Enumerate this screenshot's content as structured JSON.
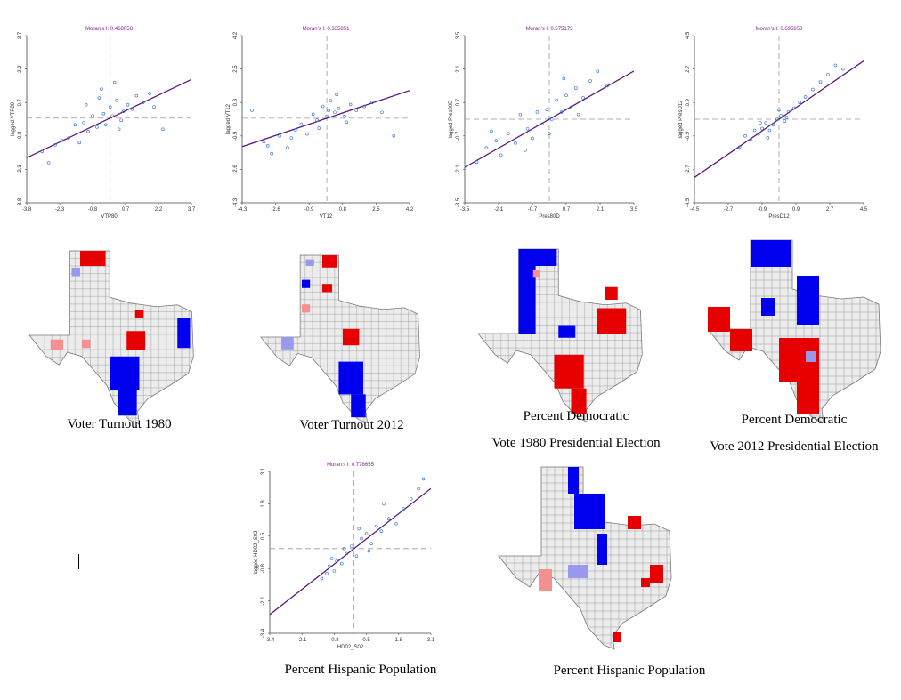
{
  "chart_data": [
    {
      "type": "scatter",
      "title": "Moran's I: 0.468058",
      "xlabel": "VTP80",
      "ylabel": "lagged VTP80",
      "fit_slope": 0.468058,
      "xlim": [
        -3.8,
        3.7
      ],
      "ylim": [
        -3.8,
        3.7
      ],
      "xticks": [
        -3.8,
        -2.3,
        -0.8,
        0.7,
        2.2,
        3.7
      ],
      "yticks": [
        -3.8,
        -2.3,
        -0.8,
        0.7,
        2.2,
        3.7
      ],
      "x": [
        -3.1,
        -2.8,
        -2.5,
        -2.2,
        -1.9,
        -1.6,
        -1.4,
        -1.2,
        -1.0,
        -0.8,
        -0.6,
        -0.5,
        -0.3,
        -0.2,
        0,
        0.1,
        0.3,
        0.4,
        0.6,
        0.8,
        1.0,
        1.2,
        1.5,
        1.8,
        2.0,
        2.4,
        -0.4,
        0.2,
        0.5,
        -1.1
      ],
      "values": [
        -1.5,
        -2.0,
        -1.2,
        -1.0,
        -0.9,
        -0.3,
        -1.1,
        -0.2,
        -0.6,
        0.1,
        -0.4,
        0.9,
        0.2,
        -0.3,
        0.5,
        0.1,
        0.8,
        -0.5,
        0.3,
        0.6,
        0.4,
        1.0,
        0.7,
        1.1,
        0.5,
        -0.5,
        1.3,
        1.6,
        -0.1,
        0.6
      ]
    },
    {
      "type": "scatter",
      "title": "Moran's I: 0.335851",
      "xlabel": "VT12",
      "ylabel": "lagged VT12",
      "fit_slope": 0.335851,
      "xlim": [
        -4.3,
        4.2
      ],
      "ylim": [
        -4.3,
        4.2
      ],
      "xticks": [
        -4.3,
        -2.6,
        -0.9,
        0.8,
        2.5,
        4.2
      ],
      "yticks": [
        -4.3,
        -2.6,
        -0.9,
        0.8,
        2.5,
        4.2
      ],
      "x": [
        -3.8,
        -3.2,
        -2.8,
        -2.4,
        -2.0,
        -1.6,
        -1.3,
        -1.0,
        -0.7,
        -0.4,
        -0.2,
        0,
        0.2,
        0.4,
        0.6,
        0.9,
        1.2,
        1.5,
        1.9,
        2.3,
        2.8,
        3.4,
        -3.0,
        -1.8,
        0.5,
        1.0,
        -0.5,
        0.1
      ],
      "values": [
        0.4,
        -1.2,
        -1.8,
        -0.9,
        -1.5,
        -0.6,
        -0.3,
        -0.8,
        0.2,
        -0.5,
        0.6,
        0.1,
        0.9,
        0.3,
        0.5,
        0.1,
        0.7,
        0.4,
        0.6,
        0.8,
        0.3,
        -0.9,
        -1.4,
        -1.0,
        1.2,
        -0.2,
        -0.1,
        0.4
      ]
    },
    {
      "type": "scatter",
      "title": "Moran's I: 0.575173",
      "xlabel": "Pres80D",
      "ylabel": "lagged Pres80D",
      "fit_slope": 0.575173,
      "xlim": [
        -3.5,
        3.5
      ],
      "ylim": [
        -3.5,
        3.5
      ],
      "xticks": [
        -3.5,
        -2.1,
        -0.7,
        0.7,
        2.1,
        3.5
      ],
      "yticks": [
        -3.5,
        -2.1,
        -0.7,
        0.7,
        2.1,
        3.5
      ],
      "x": [
        -3.0,
        -2.6,
        -2.2,
        -2.0,
        -1.7,
        -1.4,
        -1.2,
        -0.9,
        -0.7,
        -0.5,
        -0.3,
        -0.1,
        0.1,
        0.3,
        0.5,
        0.7,
        0.9,
        1.1,
        1.4,
        1.7,
        2.0,
        2.4,
        -1.0,
        0.0,
        0.6,
        1.2,
        -2.4
      ],
      "values": [
        -1.8,
        -1.2,
        -0.9,
        -1.5,
        -0.6,
        -1.0,
        0.2,
        -0.4,
        -0.8,
        0.3,
        -0.2,
        0.4,
        0.0,
        0.8,
        0.3,
        1.0,
        0.5,
        1.3,
        0.9,
        1.6,
        2.0,
        1.4,
        -1.3,
        -0.6,
        1.7,
        0.2,
        -0.5
      ]
    },
    {
      "type": "scatter",
      "title": "Moran's I: 0.695853",
      "xlabel": "PresD12",
      "ylabel": "lagged PresD12",
      "fit_slope": 0.695853,
      "xlim": [
        -4.5,
        4.5
      ],
      "ylim": [
        -4.5,
        4.5
      ],
      "xticks": [
        -4.5,
        -2.7,
        -0.9,
        0.9,
        2.7,
        4.5
      ],
      "yticks": [
        -4.5,
        -2.7,
        -0.9,
        0.9,
        2.7,
        4.5
      ],
      "x": [
        -2.1,
        -1.8,
        -1.5,
        -1.3,
        -1.1,
        -0.9,
        -0.7,
        -0.5,
        -0.3,
        -0.1,
        0.1,
        0.3,
        0.5,
        0.8,
        1.1,
        1.4,
        1.8,
        2.2,
        2.6,
        3.0,
        3.4,
        -0.6,
        0.0,
        0.4,
        -1.0
      ],
      "values": [
        -1.5,
        -0.9,
        -1.1,
        -0.6,
        -0.8,
        -0.5,
        -0.2,
        -0.6,
        -0.3,
        0.0,
        0.2,
        -0.1,
        0.4,
        0.6,
        0.9,
        1.2,
        1.6,
        2.0,
        2.4,
        2.9,
        2.7,
        -1.0,
        0.5,
        0.1,
        -0.2
      ]
    },
    {
      "type": "scatter",
      "title": "Moran's I: 0.778655",
      "xlabel": "HD02_S02",
      "ylabel": "lagged HD02_S02",
      "fit_slope": 0.778655,
      "xlim": [
        -3.4,
        3.1
      ],
      "ylim": [
        -3.4,
        3.1
      ],
      "xticks": [
        -3.4,
        -2.1,
        -0.8,
        0.5,
        1.8,
        3.1
      ],
      "yticks": [
        -3.4,
        -2.1,
        -0.8,
        0.5,
        1.8,
        3.1
      ],
      "x": [
        -1.3,
        -1.1,
        -1.0,
        -0.8,
        -0.7,
        -0.5,
        -0.3,
        -0.1,
        0.1,
        0.3,
        0.5,
        0.7,
        0.9,
        1.1,
        1.4,
        1.7,
        2.0,
        2.3,
        2.6,
        2.8,
        -0.9,
        -0.4,
        0.2,
        0.6,
        1.2
      ],
      "values": [
        -1.2,
        -1.0,
        -0.7,
        -0.9,
        -0.5,
        -0.6,
        -0.2,
        0.1,
        -0.3,
        0.4,
        0.6,
        0.2,
        0.9,
        0.7,
        1.2,
        1.0,
        1.6,
        2.0,
        2.4,
        2.8,
        -0.4,
        0.0,
        0.8,
        -0.1,
        1.8
      ]
    }
  ],
  "captions": [
    [
      "Voter Turnout 1980"
    ],
    [
      "Voter Turnout 2012"
    ],
    [
      "Percent Democratic",
      "Vote 1980 Presidential Election"
    ],
    [
      "Percent Democratic",
      "Vote 2012 Presidential Election"
    ],
    [
      "Percent Hispanic Population"
    ],
    [
      "Percent Hispanic Population"
    ]
  ]
}
